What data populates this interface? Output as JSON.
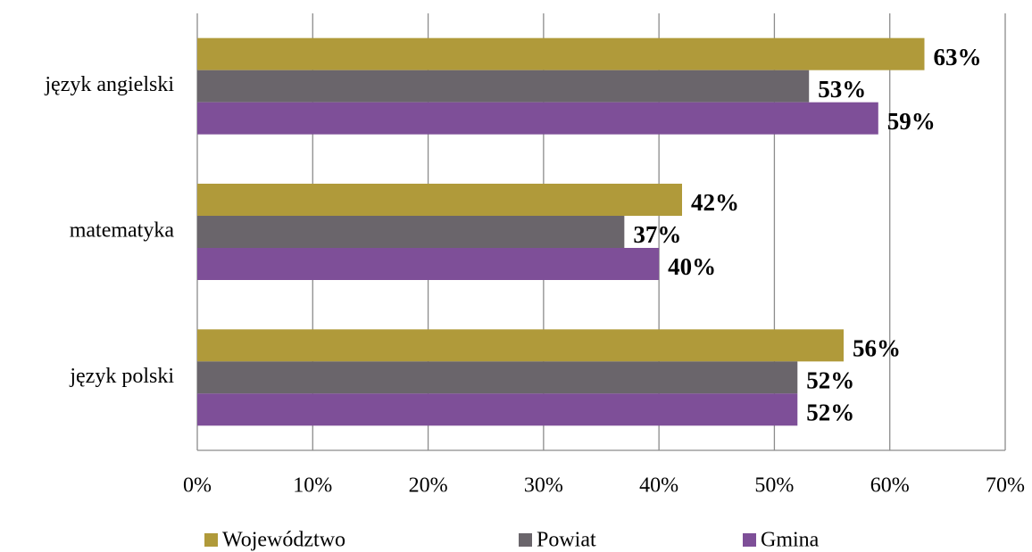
{
  "chart_data": {
    "type": "barh",
    "categories": [
      "język angielski",
      "matematyka",
      "język polski"
    ],
    "series": [
      {
        "name": "Województwo",
        "color": "#b09a3a",
        "values": [
          63,
          42,
          56
        ],
        "value_labels": [
          "63%",
          "42%",
          "56%"
        ]
      },
      {
        "name": "Powiat",
        "color": "#6a656b",
        "values": [
          53,
          37,
          52
        ],
        "value_labels": [
          "53%",
          "37%",
          "52%"
        ]
      },
      {
        "name": "Gmina",
        "color": "#7e4f98",
        "values": [
          59,
          40,
          52
        ],
        "value_labels": [
          "59%",
          "40%",
          "52%"
        ]
      }
    ],
    "xlim": [
      0,
      70
    ],
    "xticks": [
      {
        "value": 0,
        "label": "0%"
      },
      {
        "value": 10,
        "label": "10%"
      },
      {
        "value": 20,
        "label": "20%"
      },
      {
        "value": 30,
        "label": "30%"
      },
      {
        "value": 40,
        "label": "40%"
      },
      {
        "value": 50,
        "label": "50%"
      },
      {
        "value": 60,
        "label": "60%"
      },
      {
        "value": 70,
        "label": "70%"
      }
    ],
    "grid": true,
    "legend": "bottom"
  }
}
